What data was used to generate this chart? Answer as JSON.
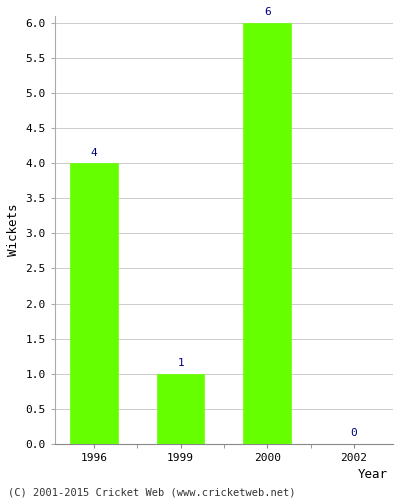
{
  "categories": [
    "1996",
    "1999",
    "2000",
    "2002"
  ],
  "values": [
    4,
    1,
    6,
    0
  ],
  "bar_color": "#66ff00",
  "bar_edge_color": "#66ff00",
  "xlabel": "Year",
  "ylabel": "Wickets",
  "ylim": [
    0.0,
    6.0
  ],
  "yticks": [
    0.0,
    0.5,
    1.0,
    1.5,
    2.0,
    2.5,
    3.0,
    3.5,
    4.0,
    4.5,
    5.0,
    5.5,
    6.0
  ],
  "label_color": "#000080",
  "label_fontsize": 8,
  "axis_label_fontsize": 9,
  "tick_fontsize": 8,
  "footer_text": "(C) 2001-2015 Cricket Web (www.cricketweb.net)",
  "footer_fontsize": 7.5,
  "bg_color": "#ffffff",
  "grid_color": "#cccccc",
  "bar_width": 0.55
}
